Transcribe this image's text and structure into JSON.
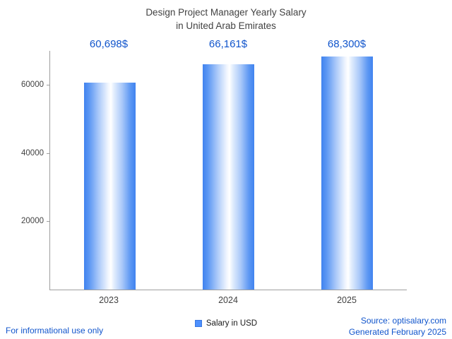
{
  "title": {
    "line1": "Design Project Manager Yearly Salary",
    "line2": "in United Arab Emirates"
  },
  "chart_data": {
    "type": "bar",
    "title": "Design Project Manager Yearly Salary in United Arab Emirates",
    "categories": [
      "2023",
      "2024",
      "2025"
    ],
    "values": [
      60698,
      66161,
      68300
    ],
    "value_labels": [
      "60,698$",
      "66,161$",
      "68,300$"
    ],
    "xlabel": "",
    "ylabel": "",
    "ylim": [
      0,
      70000
    ],
    "yticks": [
      20000,
      40000,
      60000
    ],
    "grid": false,
    "legend": {
      "label": "Salary in USD",
      "position": "bottom"
    },
    "bar_color": "#4083ef",
    "value_label_color": "#1155cc"
  },
  "footer": {
    "left": "For informational use only",
    "source": "Source: optisalary.com",
    "generated": "Generated February 2025"
  }
}
